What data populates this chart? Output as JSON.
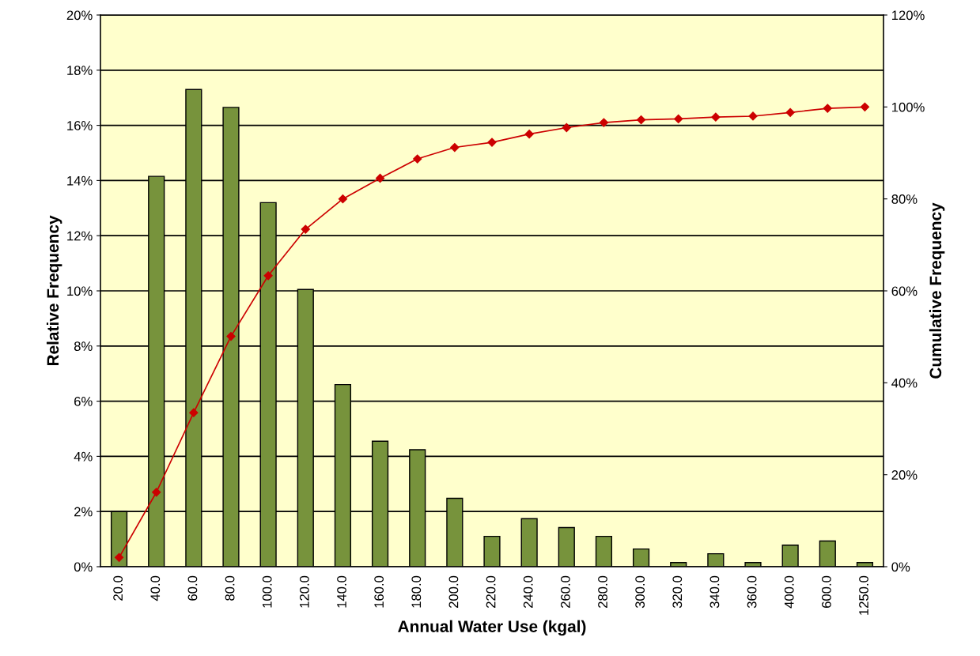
{
  "chart_data": {
    "type": "bar",
    "xlabel": "Annual Water Use (kgal)",
    "ylabel": "Relative Frequency",
    "y2label": "Cumulative Frequency",
    "categories": [
      "20.0",
      "40.0",
      "60.0",
      "80.0",
      "100.0",
      "120.0",
      "140.0",
      "160.0",
      "180.0",
      "200.0",
      "220.0",
      "240.0",
      "260.0",
      "280.0",
      "300.0",
      "320.0",
      "340.0",
      "360.0",
      "400.0",
      "600.0",
      "1250.0"
    ],
    "series": [
      {
        "color": "#77933c",
        "values": [
          2.0,
          14.15,
          17.3,
          16.65,
          13.2,
          10.05,
          6.6,
          4.55,
          4.24,
          2.48,
          1.1,
          1.74,
          1.42,
          1.1,
          0.64,
          0.15,
          0.47,
          0.15,
          0.78,
          0.93,
          0.15
        ]
      },
      {
        "type": "line",
        "axis": "y2",
        "color": "#cc0000",
        "marker": "diamond",
        "values": [
          2.0,
          16.2,
          33.5,
          50.1,
          63.3,
          73.4,
          80.0,
          84.5,
          88.7,
          91.2,
          92.3,
          94.1,
          95.5,
          96.6,
          97.2,
          97.4,
          97.8,
          98.0,
          98.8,
          99.7,
          100.0
        ]
      }
    ],
    "ylim": [
      0,
      20
    ],
    "yticks": [
      {
        "value": 0,
        "label": "0%"
      },
      {
        "value": 2,
        "label": "2%"
      },
      {
        "value": 4,
        "label": "4%"
      },
      {
        "value": 6,
        "label": "6%"
      },
      {
        "value": 8,
        "label": "8%"
      },
      {
        "value": 10,
        "label": "10%"
      },
      {
        "value": 12,
        "label": "12%"
      },
      {
        "value": 14,
        "label": "14%"
      },
      {
        "value": 16,
        "label": "16%"
      },
      {
        "value": 18,
        "label": "18%"
      },
      {
        "value": 20,
        "label": "20%"
      }
    ],
    "y2lim": [
      0,
      120
    ],
    "y2ticks": [
      {
        "value": 0,
        "label": "0%"
      },
      {
        "value": 20,
        "label": "20%"
      },
      {
        "value": 40,
        "label": "40%"
      },
      {
        "value": 60,
        "label": "60%"
      },
      {
        "value": 80,
        "label": "80%"
      },
      {
        "value": 100,
        "label": "100%"
      },
      {
        "value": 120,
        "label": "120%"
      }
    ],
    "grid": "y",
    "legend": false
  }
}
